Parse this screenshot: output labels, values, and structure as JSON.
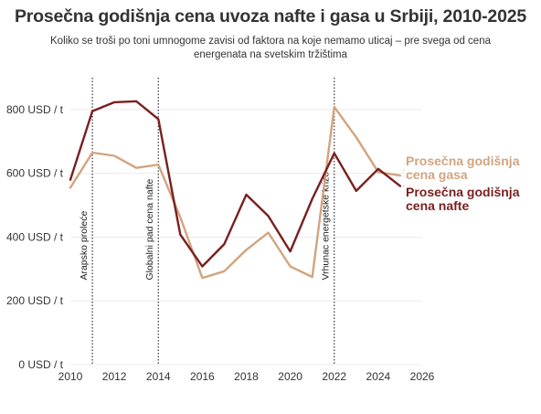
{
  "title": "Prosečna godišnja cena uvoza nafte i gasa u Srbiji, 2010-2025",
  "subtitle": "Koliko se troši po toni umnogome zavisi od faktora na koje nemamo uticaj – pre svega od cena energenata na svetskim tržištima",
  "chart_data": {
    "type": "line",
    "title": "Prosečna godišnja cena uvoza nafte i gasa u Srbiji, 2010-2025",
    "xlim": [
      2010,
      2026
    ],
    "ylim": [
      0,
      900
    ],
    "x_ticks": [
      2010,
      2012,
      2014,
      2016,
      2018,
      2020,
      2022,
      2024,
      2026
    ],
    "y_ticks": [
      {
        "value": 0,
        "label": "0 USD / t"
      },
      {
        "value": 200,
        "label": "200 USD / t"
      },
      {
        "value": 400,
        "label": "400 USD / t"
      },
      {
        "value": 600,
        "label": "600 USD / t"
      },
      {
        "value": 800,
        "label": "800 USD / t"
      }
    ],
    "grid": "horizontal",
    "series": [
      {
        "name": "Prosečna godišnja cena gasa",
        "label_lines": [
          "Prosečna godišnja",
          "cena gasa"
        ],
        "color": "#d2a47f",
        "x": [
          2010,
          2011,
          2012,
          2013,
          2014,
          2015,
          2016,
          2017,
          2018,
          2019,
          2020,
          2021,
          2022,
          2023,
          2024,
          2025
        ],
        "y": [
          555,
          665,
          655,
          617,
          627,
          462,
          272,
          293,
          360,
          414,
          308,
          275,
          808,
          713,
          604,
          593
        ]
      },
      {
        "name": "Prosečna godišnja cena nafte",
        "label_lines": [
          "Prosečna godišnja",
          "cena nafte"
        ],
        "color": "#7a1f1f",
        "x": [
          2010,
          2011,
          2012,
          2013,
          2014,
          2015,
          2016,
          2017,
          2018,
          2019,
          2020,
          2021,
          2022,
          2023,
          2024,
          2025
        ],
        "y": [
          580,
          795,
          823,
          826,
          770,
          408,
          308,
          378,
          533,
          466,
          355,
          520,
          663,
          545,
          614,
          560
        ]
      }
    ],
    "annotations": [
      {
        "x": 2011,
        "label": "Arapsko proleće"
      },
      {
        "x": 2014,
        "label": "Globalni pad cena nafte"
      },
      {
        "x": 2022,
        "label": "Vrhunac energetske krize"
      }
    ]
  }
}
